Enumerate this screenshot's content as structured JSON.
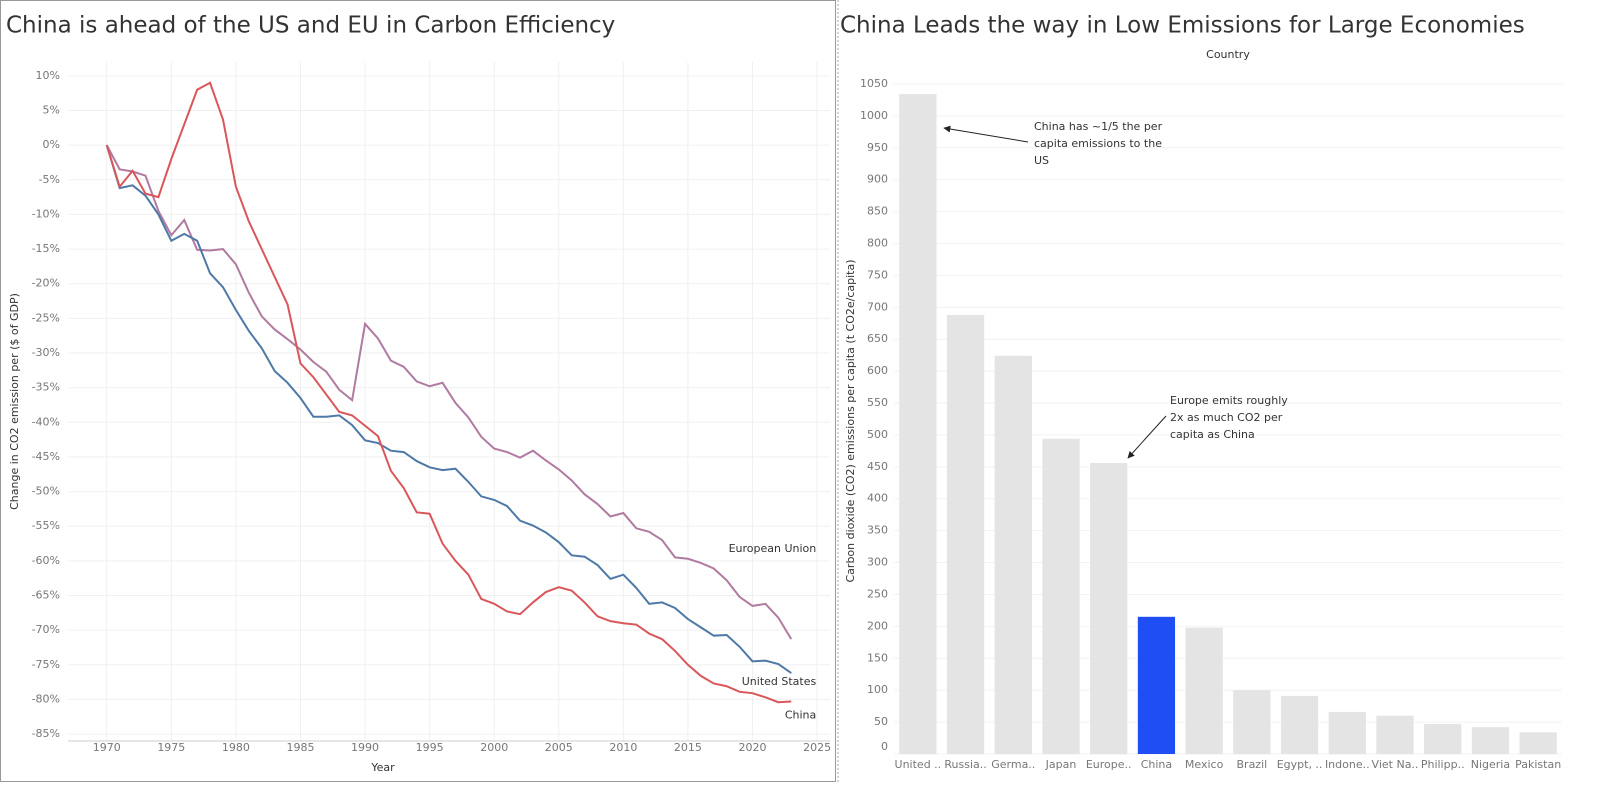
{
  "chart_data": [
    {
      "type": "line",
      "title": "China is ahead of the US and EU in Carbon Efficiency",
      "x_label": "Year",
      "y_label": "Change in CO2 emission per ($ of GDP)",
      "x": [
        1970,
        1971,
        1972,
        1973,
        1974,
        1975,
        1976,
        1977,
        1978,
        1979,
        1980,
        1981,
        1982,
        1983,
        1984,
        1985,
        1986,
        1987,
        1988,
        1989,
        1990,
        1991,
        1992,
        1993,
        1994,
        1995,
        1996,
        1997,
        1998,
        1999,
        2000,
        2001,
        2002,
        2003,
        2004,
        2005,
        2006,
        2007,
        2008,
        2009,
        2010,
        2011,
        2012,
        2013,
        2014,
        2015,
        2016,
        2017,
        2018,
        2019,
        2020,
        2021,
        2022,
        2023
      ],
      "series": [
        {
          "name": "European Union",
          "color": "#b07aa1",
          "values": [
            0,
            -3.5,
            -3.8,
            -4.4,
            -9.5,
            -13,
            -10.8,
            -15.1,
            -15.2,
            -15,
            -17.2,
            -21.3,
            -24.7,
            -26.6,
            -28,
            -29.5,
            -31.3,
            -32.7,
            -35.3,
            -36.8,
            -25.8,
            -27.9,
            -31.1,
            -32,
            -34.1,
            -34.8,
            -34.3,
            -37.2,
            -39.3,
            -42.1,
            -43.8,
            -44.3,
            -45.1,
            -44.1,
            -45.5,
            -46.8,
            -48.4,
            -50.4,
            -51.8,
            -53.6,
            -53.1,
            -55.3,
            -55.8,
            -57,
            -59.5,
            -59.7,
            -60.3,
            -61.1,
            -62.8,
            -65.2,
            -66.5,
            -66.2,
            -68.2,
            -71.3
          ]
        },
        {
          "name": "United States",
          "color": "#4e79a7",
          "values": [
            0,
            -6.2,
            -5.8,
            -7.3,
            -10,
            -13.8,
            -12.8,
            -13.8,
            -18.5,
            -20.5,
            -23.8,
            -26.8,
            -29.3,
            -32.6,
            -34.3,
            -36.5,
            -39.2,
            -39.2,
            -39,
            -40.4,
            -42.6,
            -43,
            -44.1,
            -44.3,
            -45.6,
            -46.5,
            -46.9,
            -46.7,
            -48.6,
            -50.7,
            -51.2,
            -52.1,
            -54.2,
            -54.9,
            -55.9,
            -57.3,
            -59.2,
            -59.4,
            -60.6,
            -62.6,
            -62,
            -63.9,
            -66.2,
            -66,
            -66.8,
            -68.4,
            -69.6,
            -70.8,
            -70.7,
            -72.4,
            -74.5,
            -74.4,
            -74.9,
            -76.2
          ]
        },
        {
          "name": "China",
          "color": "#d9575b",
          "values": [
            0,
            -6,
            -3.7,
            -7,
            -7.5,
            -2,
            3,
            8,
            9,
            3.7,
            -6,
            -11,
            -15,
            -19,
            -23,
            -31.5,
            -33.5,
            -36,
            -38.5,
            -39,
            -40.5,
            -42,
            -47,
            -49.5,
            -53,
            -53.2,
            -57.5,
            -60,
            -62,
            -65.5,
            -66.2,
            -67.3,
            -67.7,
            -66,
            -64.5,
            -63.8,
            -64.3,
            -66,
            -68,
            -68.7,
            -69,
            -69.2,
            -70.5,
            -71.3,
            -73,
            -75,
            -76.6,
            -77.7,
            -78.1,
            -78.9,
            -79.1,
            -79.7,
            -80.4,
            -80.3
          ]
        }
      ],
      "xlim": [
        1967,
        2026
      ],
      "xticks": [
        1970,
        1975,
        1980,
        1985,
        1990,
        1995,
        2000,
        2005,
        2010,
        2015,
        2020,
        2025
      ],
      "ylim": [
        -86,
        12
      ],
      "yticks": [
        {
          "value": 10,
          "label": "10%"
        },
        {
          "value": 5,
          "label": "5%"
        },
        {
          "value": 0,
          "label": "0%"
        },
        {
          "value": -5,
          "label": "-5%"
        },
        {
          "value": -10,
          "label": "-10%"
        },
        {
          "value": -15,
          "label": "-15%"
        },
        {
          "value": -20,
          "label": "-20%"
        },
        {
          "value": -25,
          "label": "-25%"
        },
        {
          "value": -30,
          "label": "-30%"
        },
        {
          "value": -35,
          "label": "-35%"
        },
        {
          "value": -40,
          "label": "-40%"
        },
        {
          "value": -45,
          "label": "-45%"
        },
        {
          "value": -50,
          "label": "-50%"
        },
        {
          "value": -55,
          "label": "-55%"
        },
        {
          "value": -60,
          "label": "-60%"
        },
        {
          "value": -65,
          "label": "-65%"
        },
        {
          "value": -70,
          "label": "-70%"
        },
        {
          "value": -75,
          "label": "-75%"
        },
        {
          "value": -80,
          "label": "-80%"
        },
        {
          "value": -85,
          "label": "-85%"
        }
      ],
      "grid": true
    },
    {
      "type": "bar",
      "title": "China Leads the way in Low Emissions for Large Economies",
      "header": "Country",
      "y_label": "Carbon dioxide (CO2) emissions per capita (t CO2e/capita)",
      "categories": [
        "United ..",
        "Russia..",
        "Germa..",
        "Japan",
        "Europe..",
        "China",
        "Mexico",
        "Brazil",
        "Egypt, ..",
        "Indone..",
        "Viet Na..",
        "Philipp..",
        "Nigeria",
        "Pakistan"
      ],
      "values": [
        1034,
        688,
        624,
        494,
        456,
        215,
        198,
        100,
        91,
        66,
        60,
        47,
        42,
        34
      ],
      "colors": [
        "#e4e4e4",
        "#e4e4e4",
        "#e4e4e4",
        "#e4e4e4",
        "#e4e4e4",
        "#1f4ef5",
        "#e4e4e4",
        "#e4e4e4",
        "#e4e4e4",
        "#e4e4e4",
        "#e4e4e4",
        "#e4e4e4",
        "#e4e4e4",
        "#e4e4e4"
      ],
      "ylim": [
        0,
        1075
      ],
      "yticks": [
        0,
        50,
        100,
        150,
        200,
        250,
        300,
        350,
        400,
        450,
        500,
        550,
        600,
        650,
        700,
        750,
        800,
        850,
        900,
        950,
        1000,
        1050
      ],
      "grid": true,
      "annotations": [
        {
          "lines": [
            "China has ~1/5 the per",
            "capita emissions to the",
            "US"
          ]
        },
        {
          "lines": [
            "Europe emits roughly",
            "2x as much CO2 per",
            "capita as China"
          ]
        }
      ]
    }
  ]
}
